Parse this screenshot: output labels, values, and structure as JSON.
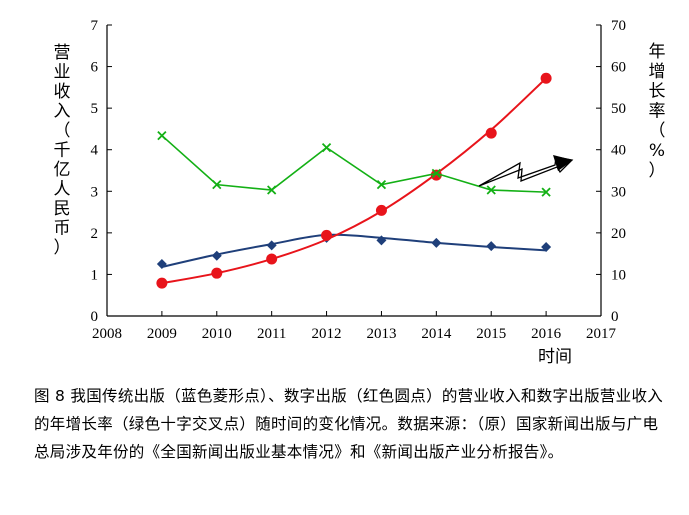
{
  "chart_data": {
    "type": "line",
    "title": "",
    "xlabel": "时间",
    "ylabel_left": "营业收入（千亿人民币）",
    "ylabel_right": "年增长率（%）",
    "x": [
      2009,
      2010,
      2011,
      2012,
      2013,
      2014,
      2015,
      2016
    ],
    "xlim": [
      2008,
      2017
    ],
    "x_ticks": [
      "2008",
      "2009",
      "2010",
      "2011",
      "2012",
      "2013",
      "2014",
      "2015",
      "2016",
      "2017"
    ],
    "ylim_left": [
      0,
      7
    ],
    "y_ticks_left": [
      "0",
      "1",
      "2",
      "3",
      "4",
      "5",
      "6",
      "7"
    ],
    "ylim_right": [
      0,
      70
    ],
    "y_ticks_right": [
      "0",
      "10",
      "20",
      "30",
      "40",
      "50",
      "60",
      "70"
    ],
    "grid": false,
    "series": [
      {
        "name": "传统出版",
        "axis": "left",
        "marker": "diamond",
        "color": "#1f3f7a",
        "points": [
          1.25,
          1.45,
          1.7,
          1.88,
          1.82,
          1.76,
          1.68,
          1.66
        ],
        "fit": [
          1.18,
          1.48,
          1.73,
          1.95,
          1.88,
          1.76,
          1.66,
          1.58
        ]
      },
      {
        "name": "数字出版",
        "axis": "left",
        "marker": "circle",
        "color": "#e8141b",
        "points": [
          0.79,
          1.03,
          1.37,
          1.94,
          2.54,
          3.39,
          4.4,
          5.72
        ],
        "fit": [
          0.79,
          1.03,
          1.37,
          1.84,
          2.52,
          3.42,
          4.48,
          5.72
        ]
      },
      {
        "name": "数字出版年增长率",
        "axis": "right",
        "marker": "x",
        "color": "#13b015",
        "points": [
          43.4,
          31.6,
          30.3,
          40.5,
          31.6,
          34.3,
          30.3,
          29.8
        ]
      }
    ]
  },
  "caption": "图 8 我国传统出版（蓝色菱形点）、数字出版（红色圆点）的营业收入和数字出版营业收入的年增长率（绿色十字交叉点）随时间的变化情况。数据来源：（原）国家新闻出版与广电总局涉及年份的《全国新闻出版业基本情况》和《新闻出版产业分析报告》。"
}
